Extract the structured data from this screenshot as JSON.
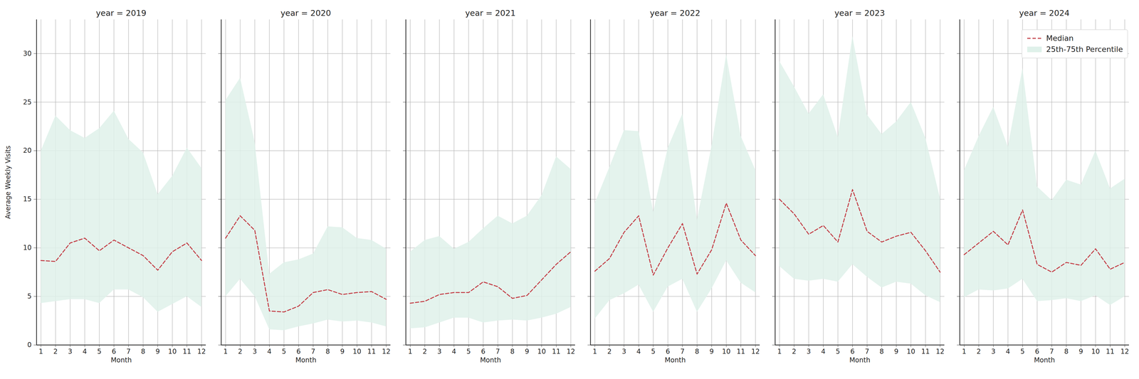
{
  "chart_data": [
    {
      "type": "line",
      "title": "year = 2019",
      "x_label": "Month",
      "y_label": "Average Weekly Visits",
      "x": [
        1,
        2,
        3,
        4,
        5,
        6,
        7,
        8,
        9,
        10,
        11,
        12
      ],
      "xlim": [
        0.7,
        12.3
      ],
      "xticks": [
        1,
        2,
        3,
        4,
        5,
        6,
        7,
        8,
        9,
        10,
        11,
        12
      ],
      "ylim": [
        0,
        33.5
      ],
      "yticks": [
        0,
        5,
        10,
        15,
        20,
        25,
        30
      ],
      "grid": true,
      "series": [
        {
          "name": "25th-75th Percentile",
          "type": "band",
          "color": "#dff1ea",
          "low": [
            4.3,
            4.5,
            4.7,
            4.7,
            4.3,
            5.7,
            5.7,
            4.9,
            3.4,
            4.2,
            5.0,
            3.9
          ],
          "high": [
            20.0,
            23.6,
            22.1,
            21.3,
            22.3,
            24.1,
            21.2,
            19.8,
            15.5,
            17.4,
            20.3,
            18.2
          ]
        },
        {
          "name": "Median",
          "type": "line",
          "color": "#c4424a",
          "line_style": "dashed",
          "values": [
            8.7,
            8.6,
            10.5,
            11.0,
            9.7,
            10.8,
            10.0,
            9.2,
            7.7,
            9.6,
            10.5,
            8.7
          ]
        }
      ]
    },
    {
      "type": "line",
      "title": "year = 2020",
      "x_label": "Month",
      "tick_labels": "x",
      "x": [
        1,
        2,
        3,
        4,
        5,
        6,
        7,
        8,
        9,
        10,
        11,
        12
      ],
      "xlim": [
        0.7,
        12.3
      ],
      "xticks": [
        1,
        2,
        3,
        4,
        5,
        6,
        7,
        8,
        9,
        10,
        11,
        12
      ],
      "ylim": [
        0,
        33.5
      ],
      "yticks": [
        0,
        5,
        10,
        15,
        20,
        25,
        30
      ],
      "grid": true,
      "series": [
        {
          "name": "25th-75th Percentile",
          "type": "band",
          "color": "#dff1ea",
          "low": [
            5.0,
            6.8,
            5.0,
            1.6,
            1.5,
            1.9,
            2.2,
            2.6,
            2.4,
            2.5,
            2.3,
            1.9
          ],
          "high": [
            25.2,
            27.5,
            20.9,
            7.3,
            8.5,
            8.8,
            9.4,
            12.2,
            12.1,
            11.0,
            10.8,
            9.9
          ]
        },
        {
          "name": "Median",
          "type": "line",
          "color": "#c4424a",
          "line_style": "dashed",
          "values": [
            11.0,
            13.3,
            11.8,
            3.5,
            3.4,
            4.0,
            5.4,
            5.7,
            5.2,
            5.4,
            5.5,
            4.7
          ]
        }
      ]
    },
    {
      "type": "line",
      "title": "year = 2021",
      "x_label": "Month",
      "tick_labels": "x",
      "x": [
        1,
        2,
        3,
        4,
        5,
        6,
        7,
        8,
        9,
        10,
        11,
        12
      ],
      "xlim": [
        0.7,
        12.3
      ],
      "xticks": [
        1,
        2,
        3,
        4,
        5,
        6,
        7,
        8,
        9,
        10,
        11,
        12
      ],
      "ylim": [
        0,
        33.5
      ],
      "yticks": [
        0,
        5,
        10,
        15,
        20,
        25,
        30
      ],
      "grid": true,
      "series": [
        {
          "name": "25th-75th Percentile",
          "type": "band",
          "color": "#dff1ea",
          "low": [
            1.7,
            1.8,
            2.3,
            2.8,
            2.8,
            2.3,
            2.5,
            2.6,
            2.5,
            2.8,
            3.2,
            3.9
          ],
          "high": [
            9.6,
            10.8,
            11.2,
            9.9,
            10.6,
            12.0,
            13.3,
            12.5,
            13.3,
            15.4,
            19.4,
            18.1
          ]
        },
        {
          "name": "Median",
          "type": "line",
          "color": "#c4424a",
          "line_style": "dashed",
          "values": [
            4.3,
            4.5,
            5.2,
            5.4,
            5.4,
            6.5,
            6.0,
            4.8,
            5.1,
            6.7,
            8.3,
            9.6
          ]
        }
      ]
    },
    {
      "type": "line",
      "title": "year = 2022",
      "x_label": "Month",
      "tick_labels": "x",
      "x": [
        1,
        2,
        3,
        4,
        5,
        6,
        7,
        8,
        9,
        10,
        11,
        12
      ],
      "xlim": [
        0.7,
        12.3
      ],
      "xticks": [
        1,
        2,
        3,
        4,
        5,
        6,
        7,
        8,
        9,
        10,
        11,
        12
      ],
      "ylim": [
        0,
        33.5
      ],
      "yticks": [
        0,
        5,
        10,
        15,
        20,
        25,
        30
      ],
      "grid": true,
      "series": [
        {
          "name": "25th-75th Percentile",
          "type": "band",
          "color": "#dff1ea",
          "low": [
            2.7,
            4.6,
            5.3,
            6.2,
            3.4,
            6.0,
            6.8,
            3.4,
            5.8,
            8.7,
            6.4,
            5.4
          ],
          "high": [
            14.6,
            18.3,
            22.1,
            22.0,
            13.7,
            20.3,
            23.8,
            12.9,
            20.5,
            29.9,
            21.5,
            18.0
          ]
        },
        {
          "name": "Median",
          "type": "line",
          "color": "#c4424a",
          "line_style": "dashed",
          "values": [
            7.6,
            8.9,
            11.6,
            13.3,
            7.2,
            10.0,
            12.5,
            7.3,
            9.8,
            14.6,
            10.8,
            9.2
          ]
        }
      ]
    },
    {
      "type": "line",
      "title": "year = 2023",
      "x_label": "Month",
      "tick_labels": "x",
      "x": [
        1,
        2,
        3,
        4,
        5,
        6,
        7,
        8,
        9,
        10,
        11,
        12
      ],
      "xlim": [
        0.7,
        12.3
      ],
      "xticks": [
        1,
        2,
        3,
        4,
        5,
        6,
        7,
        8,
        9,
        10,
        11,
        12
      ],
      "ylim": [
        0,
        33.5
      ],
      "yticks": [
        0,
        5,
        10,
        15,
        20,
        25,
        30
      ],
      "grid": true,
      "series": [
        {
          "name": "25th-75th Percentile",
          "type": "band",
          "color": "#dff1ea",
          "low": [
            8.1,
            6.8,
            6.6,
            6.8,
            6.5,
            8.3,
            7.0,
            5.9,
            6.5,
            6.3,
            5.1,
            4.4
          ],
          "high": [
            29.2,
            26.6,
            23.8,
            25.8,
            21.4,
            31.8,
            23.7,
            21.7,
            23.0,
            25.0,
            21.3,
            15.1
          ]
        },
        {
          "name": "Median",
          "type": "line",
          "color": "#c4424a",
          "line_style": "dashed",
          "values": [
            15.0,
            13.5,
            11.4,
            12.3,
            10.6,
            16.0,
            11.7,
            10.6,
            11.2,
            11.6,
            9.7,
            7.5
          ]
        }
      ]
    },
    {
      "type": "line",
      "title": "year = 2024",
      "x_label": "Month",
      "tick_labels": "x",
      "legend": "upper right",
      "x": [
        1,
        2,
        3,
        4,
        5,
        6,
        7,
        8,
        9,
        10,
        11,
        12
      ],
      "xlim": [
        0.7,
        12.3
      ],
      "xticks": [
        1,
        2,
        3,
        4,
        5,
        6,
        7,
        8,
        9,
        10,
        11,
        12
      ],
      "ylim": [
        0,
        33.5
      ],
      "yticks": [
        0,
        5,
        10,
        15,
        20,
        25,
        30
      ],
      "grid": true,
      "series": [
        {
          "name": "25th-75th Percentile",
          "type": "band",
          "color": "#dff1ea",
          "low": [
            4.9,
            5.7,
            5.6,
            5.8,
            6.8,
            4.5,
            4.6,
            4.8,
            4.5,
            5.1,
            4.1,
            5.0
          ],
          "high": [
            18.0,
            21.5,
            24.5,
            20.4,
            28.5,
            16.3,
            14.9,
            17.0,
            16.5,
            20.0,
            16.1,
            17.1
          ]
        },
        {
          "name": "Median",
          "type": "line",
          "color": "#c4424a",
          "line_style": "dashed",
          "values": [
            9.3,
            10.5,
            11.7,
            10.3,
            13.9,
            8.3,
            7.5,
            8.5,
            8.2,
            9.9,
            7.8,
            8.5
          ]
        }
      ]
    }
  ]
}
